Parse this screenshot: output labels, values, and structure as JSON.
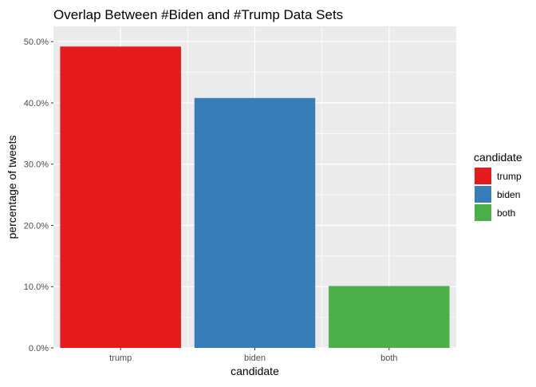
{
  "chart_data": {
    "type": "bar",
    "title": "Overlap Between #Biden and #Trump Data Sets",
    "xlabel": "candidate",
    "ylabel": "percentage of tweets",
    "categories": [
      "trump",
      "biden",
      "both"
    ],
    "values": [
      49.2,
      40.8,
      10.1
    ],
    "colors": [
      "#E41A1C",
      "#377EB8",
      "#4DAF4A"
    ],
    "ylim": [
      0,
      52.5
    ],
    "yticks": [
      0,
      10,
      20,
      30,
      40,
      50
    ],
    "ytick_labels": [
      "0.0%",
      "10.0%",
      "20.0%",
      "30.0%",
      "40.0%",
      "50.0%"
    ],
    "grid": true,
    "panel_background": "#EBEBEB",
    "legend": {
      "title": "candidate",
      "placement": "right",
      "entries": [
        "trump",
        "biden",
        "both"
      ]
    }
  }
}
